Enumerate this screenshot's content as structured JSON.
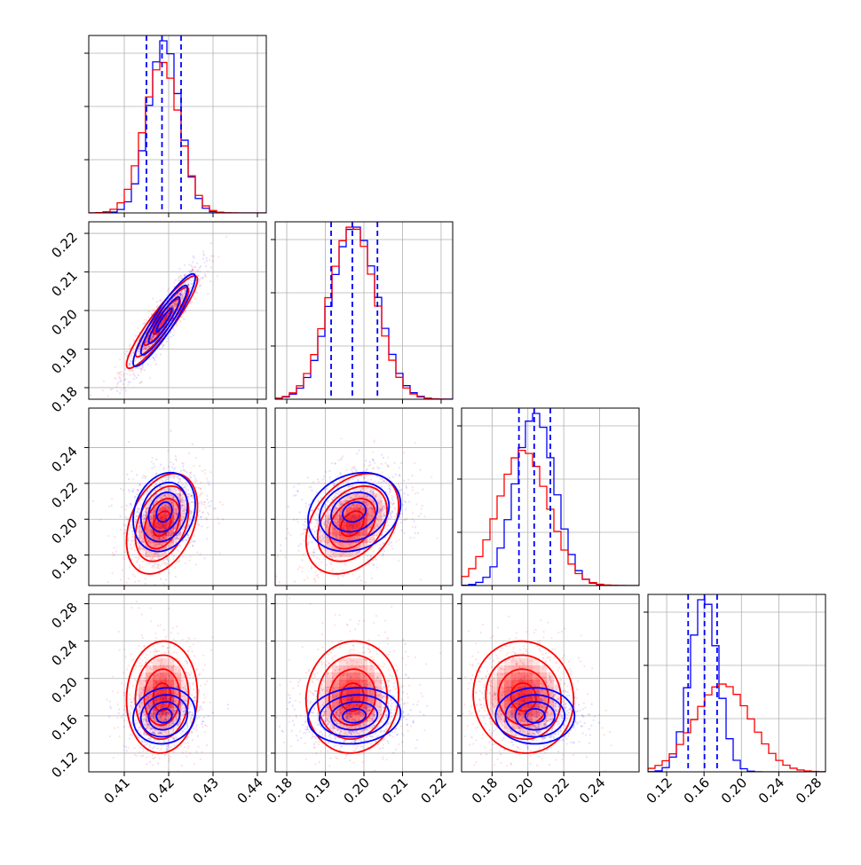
{
  "chart_data": {
    "type": "corner",
    "title": "",
    "parameters": [
      {
        "range": [
          0.402,
          0.442
        ],
        "ticks": [
          0.41,
          0.42,
          0.43,
          0.44
        ],
        "tick_labels": [
          "0.41",
          "0.42",
          "0.43",
          "0.44"
        ]
      },
      {
        "range": [
          0.177,
          0.223
        ],
        "ticks": [
          0.18,
          0.19,
          0.2,
          0.21,
          0.22
        ],
        "tick_labels": [
          "0.18",
          "0.19",
          "0.20",
          "0.21",
          "0.22"
        ]
      },
      {
        "range": [
          0.163,
          0.262
        ],
        "ticks": [
          0.18,
          0.2,
          0.22,
          0.24
        ],
        "tick_labels": [
          "0.18",
          "0.20",
          "0.22",
          "0.24"
        ]
      },
      {
        "range": [
          0.1,
          0.29
        ],
        "ticks": [
          0.12,
          0.16,
          0.2,
          0.24,
          0.28
        ],
        "tick_labels": [
          "0.12",
          "0.16",
          "0.20",
          "0.24",
          "0.28"
        ]
      }
    ],
    "series": [
      {
        "color": "#ff0000",
        "means": [
          0.4185,
          0.197,
          0.1975,
          0.18
        ],
        "sigmas": [
          0.004,
          0.006,
          0.014,
          0.03
        ],
        "correlations": [
          [
            1,
            0.92,
            0.35,
            0.05
          ],
          [
            0.92,
            1,
            0.35,
            0.05
          ],
          [
            0.35,
            0.35,
            1,
            -0.05
          ],
          [
            0.05,
            0.05,
            -0.05,
            1
          ]
        ]
      },
      {
        "color": "#0000ff",
        "means": [
          0.419,
          0.1975,
          0.204,
          0.16
        ],
        "sigmas": [
          0.0035,
          0.006,
          0.011,
          0.015
        ],
        "correlations": [
          [
            1,
            0.92,
            0.2,
            0.1
          ],
          [
            0.92,
            1,
            0.2,
            0.1
          ],
          [
            0.2,
            0.2,
            1,
            0.0
          ],
          [
            0.1,
            0.1,
            0.0,
            1
          ]
        ]
      }
    ],
    "quantile_lines": {
      "color": "#0000ff",
      "style": "dashed",
      "values": [
        [
          0.415,
          0.4185,
          0.4228
        ],
        [
          0.1915,
          0.197,
          0.2035
        ],
        [
          0.195,
          0.2035,
          0.2125
        ],
        [
          0.143,
          0.1605,
          0.174
        ]
      ]
    },
    "contour_levels_sigma": [
      0.5,
      1.0,
      1.5,
      2.0
    ],
    "grid": true,
    "legend": "none"
  }
}
